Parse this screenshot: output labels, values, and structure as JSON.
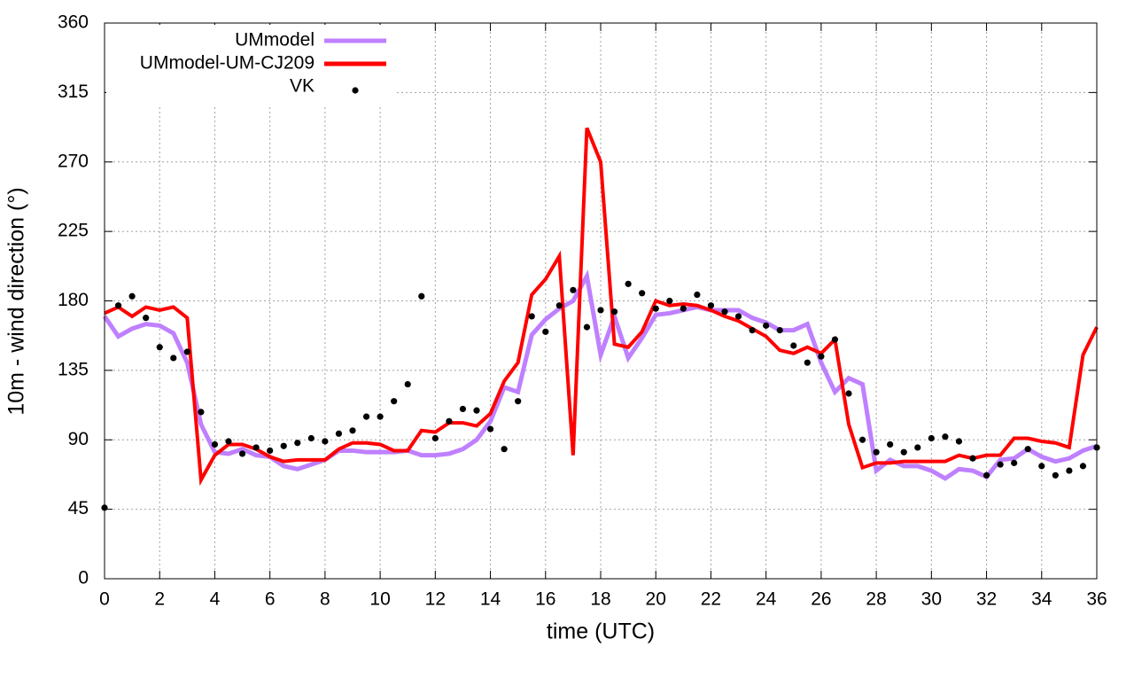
{
  "chart_data": {
    "type": "line",
    "xlabel": "time (UTC)",
    "ylabel": "10m - wind direction (°)",
    "x": [
      0,
      0.5,
      1,
      1.5,
      2,
      2.5,
      3,
      3.5,
      4,
      4.5,
      5,
      5.5,
      6,
      6.5,
      7,
      7.5,
      8,
      8.5,
      9,
      9.5,
      10,
      10.5,
      11,
      11.5,
      12,
      12.5,
      13,
      13.5,
      14,
      14.5,
      15,
      15.5,
      16,
      16.5,
      17,
      17.5,
      18,
      18.5,
      19,
      19.5,
      20,
      20.5,
      21,
      21.5,
      22,
      22.5,
      23,
      23.5,
      24,
      24.5,
      25,
      25.5,
      26,
      26.5,
      27,
      27.5,
      28,
      28.5,
      29,
      29.5,
      30,
      30.5,
      31,
      31.5,
      32,
      32.5,
      33,
      33.5,
      34,
      34.5,
      35,
      35.5,
      36
    ],
    "series": [
      {
        "name": "UMmodel",
        "color": "#bf80ff",
        "style": "line",
        "values": [
          170,
          157,
          162,
          165,
          164,
          159,
          140,
          100,
          82,
          81,
          84,
          80,
          79,
          73,
          71,
          74,
          77,
          83,
          83,
          82,
          82,
          82,
          83,
          80,
          80,
          81,
          84,
          90,
          102,
          124,
          121,
          158,
          168,
          175,
          180,
          196,
          145,
          170,
          143,
          156,
          171,
          172,
          174,
          176,
          174,
          174,
          174,
          169,
          166,
          161,
          161,
          165,
          140,
          121,
          130,
          126,
          70,
          77,
          73,
          73,
          70,
          65,
          71,
          70,
          66,
          77,
          78,
          84,
          79,
          76,
          78,
          83,
          86
        ]
      },
      {
        "name": "UMmodel-UM-CJ209",
        "color": "#ff0000",
        "style": "line",
        "values": [
          172,
          176,
          170,
          176,
          174,
          176,
          169,
          64,
          80,
          87,
          87,
          84,
          79,
          76,
          77,
          77,
          77,
          84,
          88,
          88,
          87,
          83,
          83,
          96,
          95,
          101,
          101,
          99,
          107,
          128,
          140,
          184,
          194,
          209,
          80,
          292,
          270,
          152,
          150,
          160,
          180,
          177,
          178,
          177,
          174,
          170,
          167,
          162,
          157,
          148,
          146,
          150,
          146,
          155,
          100,
          72,
          75,
          75,
          76,
          76,
          76,
          76,
          80,
          78,
          80,
          80,
          91,
          91,
          89,
          88,
          85,
          145,
          163
        ]
      },
      {
        "name": "VK",
        "color": "#000000",
        "style": "points",
        "values": [
          46,
          177,
          183,
          169,
          150,
          143,
          147,
          108,
          87,
          89,
          81,
          85,
          83,
          86,
          88,
          91,
          89,
          94,
          96,
          105,
          105,
          115,
          126,
          183,
          91,
          102,
          110,
          109,
          97,
          84,
          115,
          170,
          160,
          177,
          187,
          163,
          174,
          173,
          191,
          185,
          175,
          180,
          175,
          184,
          177,
          173,
          170,
          161,
          164,
          161,
          151,
          140,
          144,
          155,
          120,
          90,
          82,
          87,
          82,
          85,
          91,
          92,
          89,
          78,
          67,
          74,
          75,
          84,
          73,
          67,
          70,
          73,
          85
        ]
      }
    ],
    "xlim": [
      0,
      36
    ],
    "xticks": [
      0,
      2,
      4,
      6,
      8,
      10,
      12,
      14,
      16,
      18,
      20,
      22,
      24,
      26,
      28,
      30,
      32,
      34,
      36
    ],
    "ylim": [
      0,
      360
    ],
    "yticks": [
      0,
      45,
      90,
      135,
      180,
      225,
      270,
      315,
      360
    ],
    "grid": true,
    "legend": "top-left"
  }
}
